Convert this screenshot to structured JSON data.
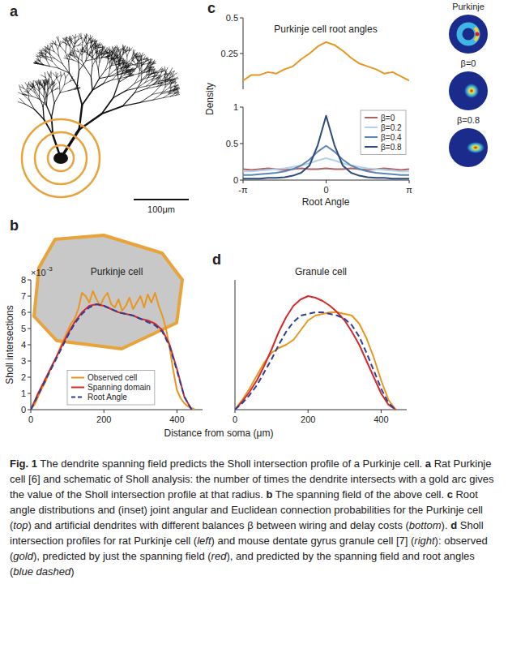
{
  "figure": {
    "panel_letters": [
      "a",
      "b",
      "c",
      "d"
    ],
    "scale_bar_label": "100μm",
    "inset_labels": [
      "Purkinje",
      "β=0",
      "β=0.8"
    ],
    "y_multiplier": {
      "base": "×10",
      "exponent": "-3"
    },
    "caption": [
      {
        "text": "Fig. 1",
        "font": "bold"
      },
      {
        "text": " The dendrite spanning field predicts the Sholl intersection profile of a Purkinje cell. ",
        "font": "normal"
      },
      {
        "text": "a",
        "font": "bold"
      },
      {
        "text": " Rat Purkinje cell [6] and schematic of Sholl analysis: the number of times the dendrite intersects with a gold arc gives the value of the Sholl intersection profile at that radius. ",
        "font": "normal"
      },
      {
        "text": "b",
        "font": "bold"
      },
      {
        "text": " The spanning field of the above cell. ",
        "font": "normal"
      },
      {
        "text": "c",
        "font": "bold"
      },
      {
        "text": " Root angle distributions and (inset) joint angular and Euclidean connection probabilities for the Purkinje cell (",
        "font": "normal"
      },
      {
        "text": "top",
        "font": "italic"
      },
      {
        "text": ") and artificial dendrites with different balances β between wiring and delay costs (",
        "font": "normal"
      },
      {
        "text": "bottom",
        "font": "italic"
      },
      {
        "text": "). ",
        "font": "normal"
      },
      {
        "text": "d",
        "font": "bold"
      },
      {
        "text": " Sholl intersection profiles for rat Purkinje cell (",
        "font": "normal"
      },
      {
        "text": "left",
        "font": "italic"
      },
      {
        "text": ") and mouse dentate gyrus granule cell [7] (",
        "font": "normal"
      },
      {
        "text": "right",
        "font": "italic"
      },
      {
        "text": "): observed (",
        "font": "normal"
      },
      {
        "text": "gold",
        "font": "italic"
      },
      {
        "text": "), predicted by just the spanning field (",
        "font": "normal"
      },
      {
        "text": "red",
        "font": "italic"
      },
      {
        "text": "), and predicted by the spanning field and root angles (",
        "font": "normal"
      },
      {
        "text": "blue dashed",
        "font": "italic"
      },
      {
        "text": ")",
        "font": "normal"
      }
    ]
  },
  "chart_data": [
    {
      "type": "line",
      "title": "Purkinje cell root angles",
      "x": [
        -3.14159,
        -2.82743,
        -2.51327,
        -2.19911,
        -1.88496,
        -1.5708,
        -1.25664,
        -0.94248,
        -0.62832,
        -0.31416,
        0,
        0.31416,
        0.62832,
        0.94248,
        1.25664,
        1.5708,
        1.88496,
        2.19911,
        2.51327,
        2.82743,
        3.14159
      ],
      "series": [
        {
          "color": "#e8961e",
          "values": [
            0.06,
            0.1,
            0.1,
            0.12,
            0.11,
            0.14,
            0.16,
            0.21,
            0.25,
            0.3,
            0.33,
            0.31,
            0.27,
            0.22,
            0.18,
            0.16,
            0.14,
            0.11,
            0.12,
            0.09,
            0.06
          ]
        }
      ],
      "xlim": [
        -3.14159,
        3.14159
      ],
      "ylim": [
        0,
        0.5
      ],
      "yticks": [
        0.25,
        0.5
      ],
      "tick_labels": "y",
      "legend": "none",
      "grid": false
    },
    {
      "type": "line",
      "x_label": "Root Angle",
      "y_label": "Density",
      "x": [
        -3.14159,
        -2.82743,
        -2.51327,
        -2.19911,
        -1.88496,
        -1.5708,
        -1.25664,
        -0.94248,
        -0.62832,
        -0.31416,
        0,
        0.31416,
        0.62832,
        0.94248,
        1.25664,
        1.5708,
        1.88496,
        2.19911,
        2.51327,
        2.82743,
        3.14159
      ],
      "series": [
        {
          "name": "β=0",
          "color": "#b06262",
          "values": [
            0.15,
            0.14,
            0.15,
            0.16,
            0.15,
            0.14,
            0.15,
            0.16,
            0.15,
            0.15,
            0.16,
            0.15,
            0.15,
            0.16,
            0.15,
            0.14,
            0.15,
            0.16,
            0.15,
            0.14,
            0.15
          ]
        },
        {
          "name": "β=0.2",
          "color": "#b5d1ea",
          "values": [
            0.12,
            0.12,
            0.13,
            0.14,
            0.15,
            0.16,
            0.18,
            0.2,
            0.23,
            0.27,
            0.3,
            0.27,
            0.23,
            0.2,
            0.18,
            0.16,
            0.15,
            0.14,
            0.13,
            0.12,
            0.12
          ]
        },
        {
          "name": "β=0.4",
          "color": "#5b85b5",
          "values": [
            0.07,
            0.07,
            0.08,
            0.09,
            0.1,
            0.12,
            0.15,
            0.2,
            0.28,
            0.39,
            0.47,
            0.39,
            0.28,
            0.2,
            0.15,
            0.12,
            0.1,
            0.09,
            0.08,
            0.07,
            0.07
          ]
        },
        {
          "name": "β=0.8",
          "color": "#2d4a78",
          "values": [
            0.02,
            0.02,
            0.02,
            0.03,
            0.03,
            0.04,
            0.06,
            0.1,
            0.2,
            0.48,
            0.88,
            0.48,
            0.2,
            0.1,
            0.06,
            0.04,
            0.03,
            0.03,
            0.02,
            0.02,
            0.02
          ]
        }
      ],
      "xlim": [
        -3.14159,
        3.14159
      ],
      "ylim": [
        0,
        1
      ],
      "xticks": [
        {
          "value": -3.14159,
          "label": "-π"
        },
        0,
        {
          "value": 3.14159,
          "label": "π"
        }
      ],
      "yticks": [
        0,
        0.5,
        1
      ],
      "legend": "upper right",
      "grid": false
    },
    {
      "type": "line",
      "title": "Purkinje cell",
      "x_label": "Distance from soma (μm)",
      "y_label": "Sholl intersections",
      "series": [
        {
          "name": "Observed cell",
          "color": "#e8961e",
          "line_style": "solid",
          "x": [
            0,
            10,
            20,
            30,
            40,
            50,
            60,
            70,
            80,
            90,
            100,
            110,
            120,
            130,
            140,
            150,
            160,
            170,
            180,
            190,
            200,
            210,
            220,
            230,
            240,
            250,
            260,
            270,
            280,
            290,
            300,
            310,
            320,
            330,
            340,
            350,
            360,
            370,
            380,
            390,
            400,
            410,
            420,
            430,
            440,
            450
          ],
          "values": [
            0,
            0.0003,
            0.0008,
            0.0013,
            0.0017,
            0.0023,
            0.0028,
            0.0032,
            0.0038,
            0.0043,
            0.0048,
            0.0053,
            0.0056,
            0.0062,
            0.0072,
            0.007,
            0.0066,
            0.0073,
            0.0068,
            0.0064,
            0.0069,
            0.0072,
            0.0065,
            0.0063,
            0.0068,
            0.0061,
            0.0064,
            0.0069,
            0.0062,
            0.0066,
            0.007,
            0.0063,
            0.0071,
            0.0066,
            0.0072,
            0.0064,
            0.0058,
            0.005,
            0.0038,
            0.0024,
            0.0012,
            0.0007,
            0.0004,
            0.0002,
            0.0001,
            0
          ]
        },
        {
          "name": "Spanning domain",
          "color": "#d42a2a",
          "line_style": "solid",
          "x": [
            0,
            20,
            40,
            60,
            80,
            100,
            120,
            140,
            160,
            180,
            200,
            220,
            240,
            260,
            280,
            300,
            320,
            340,
            360,
            380,
            400,
            420,
            440
          ],
          "values": [
            0,
            0.001,
            0.0019,
            0.0028,
            0.0037,
            0.0046,
            0.0054,
            0.006,
            0.0064,
            0.0065,
            0.0064,
            0.0062,
            0.006,
            0.0059,
            0.0058,
            0.0056,
            0.0055,
            0.0053,
            0.0049,
            0.004,
            0.0025,
            0.0008,
            0
          ]
        },
        {
          "name": "Root Angle",
          "color": "#2b3f99",
          "line_style": "dashed",
          "x": [
            0,
            20,
            40,
            60,
            80,
            100,
            120,
            140,
            160,
            180,
            200,
            220,
            240,
            260,
            280,
            300,
            320,
            340,
            360,
            380,
            400,
            420,
            440
          ],
          "values": [
            0,
            0.0009,
            0.0018,
            0.0027,
            0.0036,
            0.0045,
            0.0053,
            0.0059,
            0.0063,
            0.0065,
            0.0064,
            0.0062,
            0.006,
            0.0059,
            0.0058,
            0.0056,
            0.0054,
            0.0052,
            0.0048,
            0.0039,
            0.0024,
            0.0008,
            0
          ]
        }
      ],
      "xlim": [
        0,
        470
      ],
      "ylim": [
        0,
        0.008
      ],
      "xticks": [
        0,
        200,
        400
      ],
      "yticks": [
        0,
        {
          "value": 0.001,
          "label": "1"
        },
        {
          "value": 0.002,
          "label": "2"
        },
        {
          "value": 0.003,
          "label": "3"
        },
        {
          "value": 0.004,
          "label": "4"
        },
        {
          "value": 0.005,
          "label": "5"
        },
        {
          "value": 0.006,
          "label": "6"
        },
        {
          "value": 0.007,
          "label": "7"
        },
        {
          "value": 0.008,
          "label": "8"
        }
      ],
      "legend": "bottom",
      "grid": false
    },
    {
      "type": "line",
      "title": "Granule cell",
      "series": [
        {
          "name": "Observed cell",
          "color": "#e8961e",
          "line_style": "solid",
          "x": [
            0,
            20,
            40,
            60,
            80,
            100,
            120,
            140,
            160,
            180,
            200,
            220,
            240,
            260,
            280,
            300,
            320,
            340,
            360,
            380,
            400,
            420,
            440
          ],
          "values": [
            0,
            0.0006,
            0.0013,
            0.0021,
            0.0029,
            0.0035,
            0.0038,
            0.004,
            0.0043,
            0.0049,
            0.0055,
            0.0058,
            0.0059,
            0.006,
            0.006,
            0.0059,
            0.0058,
            0.0053,
            0.0044,
            0.0032,
            0.0018,
            0.0006,
            0
          ]
        },
        {
          "name": "Spanning domain",
          "color": "#d42a2a",
          "line_style": "solid",
          "x": [
            0,
            20,
            40,
            60,
            80,
            100,
            120,
            140,
            160,
            180,
            200,
            220,
            240,
            260,
            280,
            300,
            320,
            340,
            360,
            380,
            400,
            420,
            440
          ],
          "values": [
            0,
            0.0005,
            0.0011,
            0.0018,
            0.0027,
            0.0037,
            0.0048,
            0.0057,
            0.0064,
            0.0068,
            0.007,
            0.0069,
            0.0067,
            0.0064,
            0.006,
            0.0055,
            0.0048,
            0.004,
            0.003,
            0.002,
            0.001,
            0.0003,
            0
          ]
        },
        {
          "name": "Root Angle",
          "color": "#2b3f99",
          "line_style": "dashed",
          "x": [
            0,
            20,
            40,
            60,
            80,
            100,
            120,
            140,
            160,
            180,
            200,
            220,
            240,
            260,
            280,
            300,
            320,
            340,
            360,
            380,
            400,
            420,
            440
          ],
          "values": [
            0,
            0.0004,
            0.0009,
            0.0015,
            0.0023,
            0.0031,
            0.004,
            0.0048,
            0.0054,
            0.0058,
            0.0059,
            0.006,
            0.006,
            0.0059,
            0.0058,
            0.0056,
            0.0052,
            0.0045,
            0.0035,
            0.0024,
            0.0013,
            0.0004,
            0
          ]
        }
      ],
      "xlim": [
        0,
        470
      ],
      "ylim": [
        0,
        0.008
      ],
      "xticks": [
        0,
        200,
        400
      ],
      "tick_labels": "x",
      "legend": "none",
      "grid": false
    }
  ]
}
